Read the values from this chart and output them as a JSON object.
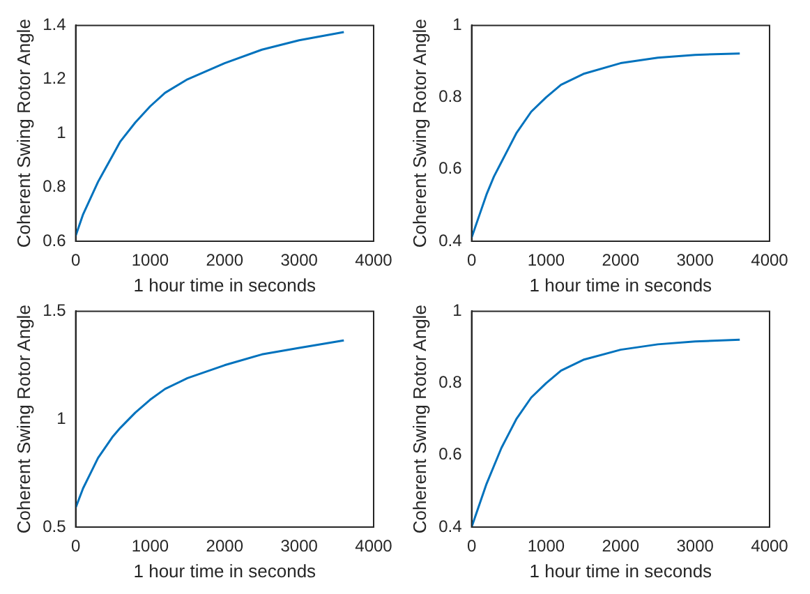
{
  "chart_data": [
    {
      "type": "line",
      "xlabel": "1 hour time in seconds",
      "ylabel": "Coherent Swing Rotor Angle",
      "x": [
        0,
        100,
        200,
        300,
        400,
        500,
        600,
        800,
        1000,
        1200,
        1500,
        2000,
        2500,
        3000,
        3600
      ],
      "series": [
        {
          "color": "#0072bd",
          "values": [
            0.62,
            0.7,
            0.76,
            0.82,
            0.87,
            0.92,
            0.97,
            1.04,
            1.1,
            1.15,
            1.2,
            1.26,
            1.31,
            1.345,
            1.375
          ]
        }
      ],
      "xlim": [
        0,
        4000
      ],
      "xticks": [
        0,
        1000,
        2000,
        3000,
        4000
      ],
      "ylim": [
        0.6,
        1.4
      ],
      "yticks": [
        0.6,
        0.8,
        1,
        1.2,
        1.4
      ],
      "grid": false,
      "legend": false,
      "marker": "none",
      "line_style": "solid"
    },
    {
      "type": "line",
      "xlabel": "1 hour time in seconds",
      "ylabel": "Coherent Swing Rotor Angle",
      "x": [
        0,
        100,
        200,
        300,
        400,
        500,
        600,
        800,
        1000,
        1200,
        1500,
        2000,
        2500,
        3000,
        3600
      ],
      "series": [
        {
          "color": "#0072bd",
          "values": [
            0.41,
            0.47,
            0.53,
            0.58,
            0.62,
            0.66,
            0.7,
            0.76,
            0.8,
            0.835,
            0.865,
            0.895,
            0.91,
            0.918,
            0.922
          ]
        }
      ],
      "xlim": [
        0,
        4000
      ],
      "xticks": [
        0,
        1000,
        2000,
        3000,
        4000
      ],
      "ylim": [
        0.4,
        1
      ],
      "yticks": [
        0.4,
        0.6,
        0.8,
        1
      ],
      "grid": false,
      "legend": false,
      "marker": "none",
      "line_style": "solid"
    },
    {
      "type": "line",
      "xlabel": "1 hour time in seconds",
      "ylabel": "Coherent Swing Rotor Angle",
      "x": [
        0,
        100,
        200,
        300,
        400,
        500,
        600,
        800,
        1000,
        1200,
        1500,
        2000,
        2500,
        3000,
        3600
      ],
      "series": [
        {
          "color": "#0072bd",
          "values": [
            0.59,
            0.68,
            0.75,
            0.82,
            0.87,
            0.92,
            0.96,
            1.03,
            1.09,
            1.14,
            1.19,
            1.25,
            1.3,
            1.33,
            1.365
          ]
        }
      ],
      "xlim": [
        0,
        4000
      ],
      "xticks": [
        0,
        1000,
        2000,
        3000,
        4000
      ],
      "ylim": [
        0.5,
        1.5
      ],
      "yticks": [
        0.5,
        1,
        1.5
      ],
      "grid": false,
      "legend": false,
      "marker": "none",
      "line_style": "solid"
    },
    {
      "type": "line",
      "xlabel": "1 hour time in seconds",
      "ylabel": "Coherent Swing Rotor Angle",
      "x": [
        0,
        100,
        200,
        300,
        400,
        500,
        600,
        800,
        1000,
        1200,
        1500,
        2000,
        2500,
        3000,
        3600
      ],
      "series": [
        {
          "color": "#0072bd",
          "values": [
            0.4,
            0.46,
            0.52,
            0.57,
            0.62,
            0.66,
            0.7,
            0.76,
            0.8,
            0.835,
            0.865,
            0.893,
            0.908,
            0.916,
            0.921
          ]
        }
      ],
      "xlim": [
        0,
        4000
      ],
      "xticks": [
        0,
        1000,
        2000,
        3000,
        4000
      ],
      "ylim": [
        0.4,
        1
      ],
      "yticks": [
        0.4,
        0.6,
        0.8,
        1
      ],
      "grid": false,
      "legend": false,
      "marker": "none",
      "line_style": "solid"
    }
  ]
}
